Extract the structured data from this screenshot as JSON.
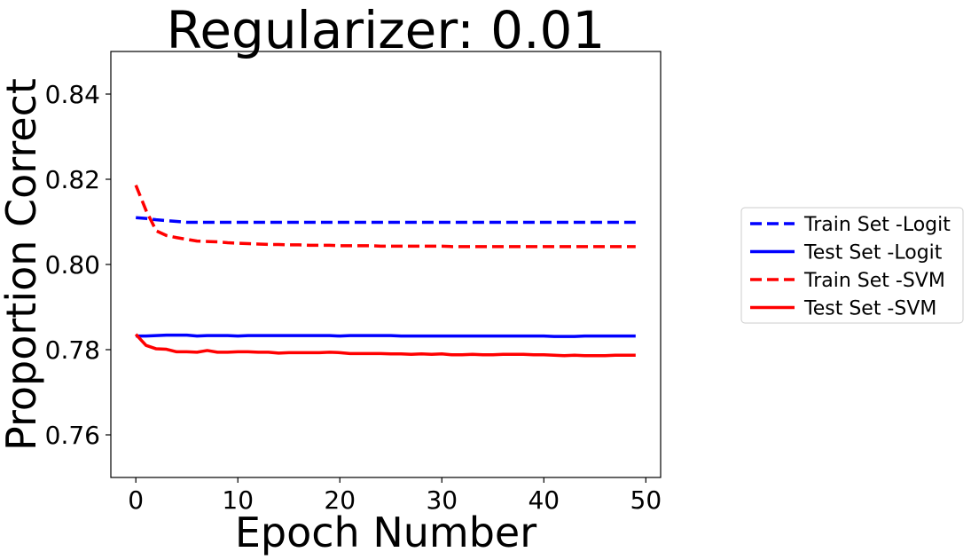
{
  "chart_data": {
    "type": "line",
    "title": "Regularizer: 0.01",
    "xlabel": "Epoch Number",
    "ylabel": "Proportion Correct",
    "xlim": [
      -2.45,
      51.45
    ],
    "ylim": [
      0.75,
      0.85
    ],
    "xticks": [
      0,
      10,
      20,
      30,
      40,
      50
    ],
    "yticks": [
      0.76,
      0.78,
      0.8,
      0.82,
      0.84
    ],
    "ytick_labels": [
      "0.76",
      "0.78",
      "0.80",
      "0.82",
      "0.84"
    ],
    "grid": false,
    "legend_position": "right",
    "series": [
      {
        "name": "Train Set -Logit",
        "color": "#0000ff",
        "dash": "dashed",
        "x": [
          0,
          1,
          2,
          3,
          4,
          5,
          6,
          7,
          8,
          9,
          10,
          11,
          12,
          13,
          14,
          15,
          16,
          17,
          18,
          19,
          20,
          21,
          22,
          23,
          24,
          25,
          26,
          27,
          28,
          29,
          30,
          31,
          32,
          33,
          34,
          35,
          36,
          37,
          38,
          39,
          40,
          41,
          42,
          43,
          44,
          45,
          46,
          47,
          48,
          49
        ],
        "y": [
          0.811,
          0.8108,
          0.8105,
          0.8103,
          0.8101,
          0.8099,
          0.8099,
          0.8099,
          0.8099,
          0.8099,
          0.8099,
          0.8099,
          0.8099,
          0.8099,
          0.8099,
          0.8099,
          0.8099,
          0.8099,
          0.8099,
          0.8099,
          0.8099,
          0.8099,
          0.8099,
          0.8099,
          0.8099,
          0.8099,
          0.8099,
          0.8099,
          0.8099,
          0.8099,
          0.8099,
          0.8099,
          0.8099,
          0.8099,
          0.8099,
          0.8099,
          0.8099,
          0.8099,
          0.8099,
          0.8099,
          0.8099,
          0.8099,
          0.8099,
          0.8099,
          0.8099,
          0.8099,
          0.8099,
          0.8099,
          0.8099,
          0.8099
        ]
      },
      {
        "name": "Test Set -Logit",
        "color": "#0000ff",
        "dash": "solid",
        "x": [
          0,
          1,
          2,
          3,
          4,
          5,
          6,
          7,
          8,
          9,
          10,
          11,
          12,
          13,
          14,
          15,
          16,
          17,
          18,
          19,
          20,
          21,
          22,
          23,
          24,
          25,
          26,
          27,
          28,
          29,
          30,
          31,
          32,
          33,
          34,
          35,
          36,
          37,
          38,
          39,
          40,
          41,
          42,
          43,
          44,
          45,
          46,
          47,
          48,
          49
        ],
        "y": [
          0.7832,
          0.7832,
          0.7833,
          0.7834,
          0.7834,
          0.7834,
          0.7832,
          0.7833,
          0.7833,
          0.7833,
          0.7832,
          0.7833,
          0.7833,
          0.7833,
          0.7833,
          0.7833,
          0.7833,
          0.7833,
          0.7833,
          0.7833,
          0.7832,
          0.7833,
          0.7833,
          0.7833,
          0.7833,
          0.7833,
          0.7832,
          0.7832,
          0.7832,
          0.7832,
          0.7832,
          0.7832,
          0.7832,
          0.7832,
          0.7832,
          0.7832,
          0.7832,
          0.7832,
          0.7832,
          0.7832,
          0.7832,
          0.7831,
          0.7831,
          0.7831,
          0.7832,
          0.7832,
          0.7832,
          0.7832,
          0.7832,
          0.7832
        ]
      },
      {
        "name": "Train Set -SVM",
        "color": "#ff0000",
        "dash": "dashed",
        "x": [
          0,
          1,
          2,
          3,
          4,
          5,
          6,
          7,
          8,
          9,
          10,
          11,
          12,
          13,
          14,
          15,
          16,
          17,
          18,
          19,
          20,
          21,
          22,
          23,
          24,
          25,
          26,
          27,
          28,
          29,
          30,
          31,
          32,
          33,
          34,
          35,
          36,
          37,
          38,
          39,
          40,
          41,
          42,
          43,
          44,
          45,
          46,
          47,
          48,
          49
        ],
        "y": [
          0.8186,
          0.8127,
          0.8079,
          0.8068,
          0.8063,
          0.8059,
          0.8055,
          0.8054,
          0.8053,
          0.8051,
          0.805,
          0.8049,
          0.8048,
          0.8047,
          0.8047,
          0.8046,
          0.8046,
          0.8045,
          0.8045,
          0.8045,
          0.8044,
          0.8044,
          0.8044,
          0.8044,
          0.8043,
          0.8043,
          0.8043,
          0.8043,
          0.8043,
          0.8043,
          0.8043,
          0.8042,
          0.8042,
          0.8042,
          0.8042,
          0.8042,
          0.8042,
          0.8042,
          0.8042,
          0.8042,
          0.8042,
          0.8042,
          0.8042,
          0.8042,
          0.8042,
          0.8042,
          0.8042,
          0.8042,
          0.8042,
          0.8042
        ]
      },
      {
        "name": "Test Set -SVM",
        "color": "#ff0000",
        "dash": "solid",
        "x": [
          0,
          1,
          2,
          3,
          4,
          5,
          6,
          7,
          8,
          9,
          10,
          11,
          12,
          13,
          14,
          15,
          16,
          17,
          18,
          19,
          20,
          21,
          22,
          23,
          24,
          25,
          26,
          27,
          28,
          29,
          30,
          31,
          32,
          33,
          34,
          35,
          36,
          37,
          38,
          39,
          40,
          41,
          42,
          43,
          44,
          45,
          46,
          47,
          48,
          49
        ],
        "y": [
          0.7836,
          0.781,
          0.7802,
          0.7801,
          0.7795,
          0.7795,
          0.7794,
          0.7798,
          0.7794,
          0.7794,
          0.7795,
          0.7795,
          0.7794,
          0.7794,
          0.7792,
          0.7793,
          0.7793,
          0.7793,
          0.7793,
          0.7794,
          0.7793,
          0.7791,
          0.7791,
          0.7791,
          0.7791,
          0.779,
          0.779,
          0.7789,
          0.779,
          0.7789,
          0.779,
          0.7788,
          0.7788,
          0.7789,
          0.7788,
          0.7788,
          0.7789,
          0.7789,
          0.7789,
          0.7788,
          0.7788,
          0.7787,
          0.7786,
          0.7787,
          0.7786,
          0.7786,
          0.7786,
          0.7787,
          0.7787,
          0.7787
        ]
      }
    ]
  }
}
